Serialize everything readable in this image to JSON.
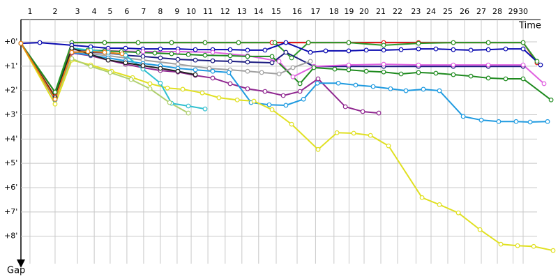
{
  "chart_data": {
    "type": "line",
    "x_label": "Time",
    "y_label": "Gap",
    "xlim": [
      0,
      32
    ],
    "ylim": [
      -0.92,
      8.9
    ],
    "y_inverted": true,
    "grid": true,
    "xticks": [
      {
        "value": 0.54,
        "label": "1"
      },
      {
        "value": 2.04,
        "label": "2"
      },
      {
        "value": 3.38,
        "label": "3"
      },
      {
        "value": 4.38,
        "label": "4"
      },
      {
        "value": 5.33,
        "label": "5"
      },
      {
        "value": 6.33,
        "label": "6"
      },
      {
        "value": 7.33,
        "label": "7"
      },
      {
        "value": 8.33,
        "label": "8"
      },
      {
        "value": 9.33,
        "label": "9"
      },
      {
        "value": 10.17,
        "label": "10"
      },
      {
        "value": 11.17,
        "label": "11"
      },
      {
        "value": 12.2,
        "label": "12"
      },
      {
        "value": 13.2,
        "label": "13"
      },
      {
        "value": 14.2,
        "label": "14"
      },
      {
        "value": 15.25,
        "label": "15"
      },
      {
        "value": 16.5,
        "label": "16"
      },
      {
        "value": 17.6,
        "label": "17"
      },
      {
        "value": 18.7,
        "label": "18"
      },
      {
        "value": 19.6,
        "label": "19"
      },
      {
        "value": 20.5,
        "label": "20"
      },
      {
        "value": 21.5,
        "label": "21"
      },
      {
        "value": 22.5,
        "label": "22"
      },
      {
        "value": 23.6,
        "label": "23"
      },
      {
        "value": 24.5,
        "label": "24"
      },
      {
        "value": 25.5,
        "label": "25"
      },
      {
        "value": 26.5,
        "label": "26"
      },
      {
        "value": 27.5,
        "label": "27"
      },
      {
        "value": 28.46,
        "label": "28"
      },
      {
        "value": 29.4,
        "label": "29"
      },
      {
        "value": 30.0,
        "label": "30"
      }
    ],
    "yticks": [
      {
        "value": 0,
        "label": "+0'"
      },
      {
        "value": 1,
        "label": "+1'"
      },
      {
        "value": 2,
        "label": "+2'"
      },
      {
        "value": 3,
        "label": "+3'"
      },
      {
        "value": 4,
        "label": "+4'"
      },
      {
        "value": 5,
        "label": "+5'"
      },
      {
        "value": 6,
        "label": "+6'"
      },
      {
        "value": 7,
        "label": "+7'"
      },
      {
        "value": 8,
        "label": "+8'"
      }
    ],
    "series": [
      {
        "color": "#e01010",
        "x": [
          0,
          2.04,
          3.04,
          5,
          7,
          9,
          11,
          13,
          15,
          17.17,
          19.58,
          21.67,
          23.75,
          25.83,
          27.92,
          30,
          30.83
        ],
        "values": [
          0.06,
          2.24,
          0.03,
          0.03,
          0.03,
          0.03,
          0.03,
          0.03,
          0.03,
          0.03,
          0.03,
          0.03,
          0.03,
          0.03,
          0.03,
          0.03,
          0.86
        ]
      },
      {
        "color": "#2a9a2a",
        "x": [
          0,
          2.04,
          3.04,
          5,
          7,
          9,
          11,
          13,
          15.17,
          16.17,
          17.17,
          19.58,
          21.67,
          23.75,
          25.83,
          27.92,
          30,
          30.83
        ],
        "values": [
          0.06,
          2.07,
          0.03,
          0.03,
          0.03,
          0.03,
          0.03,
          0.03,
          0.03,
          0.66,
          0.03,
          0.03,
          0.14,
          0.06,
          0.03,
          0.03,
          0.03,
          0.8
        ]
      },
      {
        "color": "#0a0ab0",
        "x": [
          0,
          1.13,
          3.04,
          4.17,
          5.21,
          6.25,
          7.29,
          8.33,
          9.38,
          10.42,
          11.46,
          12.5,
          13.54,
          14.58,
          15.83,
          17.29,
          18.21,
          19.58,
          20.63,
          21.67,
          22.71,
          23.75,
          24.79,
          25.83,
          26.88,
          27.92,
          28.96,
          30,
          31.04
        ],
        "values": [
          0.06,
          0.03,
          0.14,
          0.2,
          0.26,
          0.26,
          0.29,
          0.29,
          0.29,
          0.32,
          0.32,
          0.32,
          0.34,
          0.34,
          0.03,
          0.43,
          0.37,
          0.37,
          0.34,
          0.34,
          0.32,
          0.29,
          0.29,
          0.32,
          0.34,
          0.32,
          0.29,
          0.29,
          0.95
        ]
      },
      {
        "color": "#1a1a80",
        "x": [
          0,
          2.04,
          3.04,
          4.17,
          5.21,
          6.25,
          7.29,
          8.33,
          9.38,
          10.42,
          11.46,
          12.5,
          13.54,
          15,
          15.83,
          17.5,
          19.58,
          21.67,
          23.75,
          25.83,
          27.92,
          30
        ],
        "values": [
          0.06,
          2.3,
          0.29,
          0.43,
          0.46,
          0.55,
          0.6,
          0.66,
          0.72,
          0.75,
          0.78,
          0.8,
          0.83,
          0.86,
          0.43,
          1.01,
          1.01,
          1.01,
          1.01,
          1.01,
          1.01,
          1.01
        ]
      },
      {
        "color": "#e060e0",
        "x": [
          0,
          2.04,
          3.04,
          5.21,
          7.29,
          9.38,
          11.46,
          13.54,
          15.42,
          16.25,
          17.5,
          19.58,
          21.67,
          23.75,
          25.83,
          27.92,
          30,
          31.25
        ],
        "values": [
          0.06,
          2.3,
          0.32,
          0.37,
          0.4,
          0.4,
          0.43,
          0.57,
          0.8,
          1.44,
          1.01,
          0.95,
          0.92,
          0.95,
          0.95,
          0.95,
          0.95,
          1.72
        ]
      },
      {
        "color": "#1e8a1e",
        "x": [
          0,
          2.04,
          3.04,
          4,
          5,
          6,
          7,
          8,
          9,
          10,
          11,
          12.5,
          13.54,
          15,
          16.67,
          17.5,
          18.75,
          19.58,
          20.63,
          21.67,
          22.71,
          23.75,
          24.79,
          25.83,
          26.88,
          27.92,
          28.96,
          30,
          31.67
        ],
        "values": [
          0.06,
          2.07,
          0.29,
          0.34,
          0.37,
          0.4,
          0.43,
          0.46,
          0.49,
          0.52,
          0.55,
          0.57,
          0.6,
          0.6,
          1.72,
          1.06,
          1.12,
          1.15,
          1.21,
          1.24,
          1.32,
          1.26,
          1.29,
          1.35,
          1.41,
          1.49,
          1.52,
          1.52,
          2.39
        ]
      },
      {
        "color": "#a0a0a0",
        "x": [
          0,
          2.04,
          3.04,
          5.21,
          7.29,
          9.38,
          11.25,
          12.5,
          13.54,
          14.38,
          15.42,
          16.25,
          17.29
        ],
        "values": [
          0.06,
          2.3,
          0.4,
          0.57,
          0.75,
          0.92,
          1.09,
          1.15,
          1.21,
          1.26,
          1.32,
          1.06,
          0.8
        ]
      },
      {
        "color": "#902890",
        "x": [
          0,
          2.04,
          3.04,
          4.17,
          5.21,
          6.25,
          7.29,
          8.33,
          9.38,
          10.42,
          11.46,
          12.5,
          13.54,
          14.58,
          15.67,
          16.67,
          17.75,
          19.38,
          20.42,
          21.38
        ],
        "values": [
          0.06,
          2.39,
          0.46,
          0.57,
          0.75,
          0.92,
          1.06,
          1.18,
          1.24,
          1.38,
          1.49,
          1.72,
          1.93,
          2.04,
          2.21,
          2.04,
          1.52,
          2.67,
          2.87,
          2.93
        ]
      },
      {
        "color": "#1e9ae0",
        "x": [
          0,
          2.04,
          3.04,
          4.17,
          5.21,
          6.25,
          7.29,
          8.33,
          9.38,
          10.42,
          11.46,
          12.42,
          13.75,
          14.83,
          15.83,
          16.88,
          17.71,
          18.96,
          20,
          21.04,
          22.08,
          23,
          24.04,
          25,
          26.42,
          27.5,
          28.54,
          29.58,
          30.42,
          31.46
        ],
        "values": [
          0.06,
          2.39,
          0.43,
          0.55,
          0.66,
          0.78,
          0.89,
          0.98,
          1.09,
          1.15,
          1.21,
          1.26,
          2.5,
          2.59,
          2.61,
          2.36,
          1.7,
          1.7,
          1.78,
          1.84,
          1.93,
          2.01,
          1.95,
          2.01,
          3.07,
          3.22,
          3.28,
          3.28,
          3.3,
          3.28
        ]
      },
      {
        "color": "#e0e020",
        "x": [
          0,
          2.04,
          3.04,
          4.17,
          5.42,
          6.67,
          7.71,
          8.75,
          9.67,
          10.83,
          11.83,
          12.92,
          13.92,
          15,
          16.17,
          17.75,
          18.88,
          19.88,
          20.88,
          21.96,
          23.96,
          25,
          26.13,
          27.42,
          28.67,
          29.67,
          30.63,
          31.79
        ],
        "values": [
          0.06,
          2.56,
          0.75,
          0.95,
          1.21,
          1.47,
          1.72,
          1.9,
          1.95,
          2.1,
          2.3,
          2.39,
          2.44,
          2.79,
          3.39,
          4.43,
          3.74,
          3.76,
          3.85,
          4.28,
          6.41,
          6.7,
          7.04,
          7.73,
          8.33,
          8.39,
          8.42,
          8.59
        ]
      },
      {
        "color": "#30c0d0",
        "x": [
          0,
          2.04,
          3.04,
          4.17,
          5.21,
          6.25,
          7.29,
          8.33,
          9,
          10,
          11
        ],
        "values": [
          0.06,
          2.3,
          0.26,
          0.34,
          0.43,
          0.55,
          1.12,
          1.7,
          2.53,
          2.64,
          2.76
        ]
      },
      {
        "color": "#b0d070",
        "x": [
          0,
          2.04,
          3.04,
          4.17,
          5.33,
          6.58,
          7.71,
          8.88,
          10
        ],
        "values": [
          0.06,
          2.36,
          0.69,
          1.01,
          1.26,
          1.55,
          1.93,
          2.5,
          2.93
        ]
      },
      {
        "color": "#202020",
        "x": [
          0,
          2.04,
          3.04,
          4.17,
          5.21,
          6.25,
          7.29,
          8.33,
          9.38,
          10.42
        ],
        "values": [
          0.06,
          2.3,
          0.26,
          0.52,
          0.75,
          0.86,
          0.98,
          1.09,
          1.21,
          1.35
        ]
      },
      {
        "color": "#f08010",
        "x": [
          0,
          2.04,
          3.04,
          4,
          5,
          6.04
        ],
        "values": [
          0.06,
          2.36,
          0.43,
          0.4,
          0.43,
          0.49
        ]
      }
    ]
  }
}
